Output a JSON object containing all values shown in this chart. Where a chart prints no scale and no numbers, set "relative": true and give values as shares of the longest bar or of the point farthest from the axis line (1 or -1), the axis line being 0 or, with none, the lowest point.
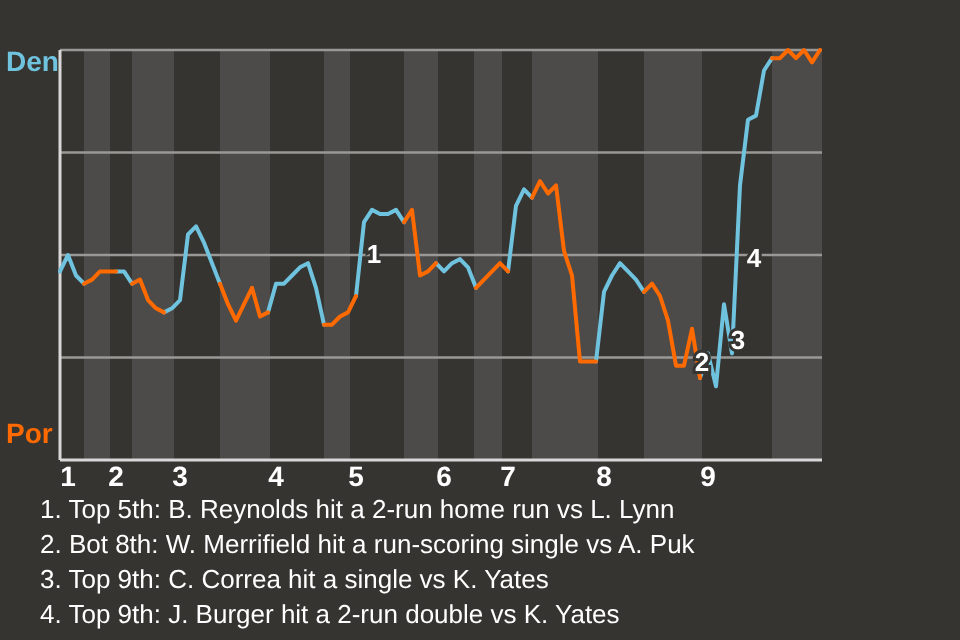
{
  "chart_data": {
    "type": "line",
    "relative": true,
    "grid": "y",
    "marker": "none",
    "line_style": "solid",
    "categories": [
      null,
      "1",
      null,
      null,
      null,
      null,
      null,
      "2",
      null,
      null,
      null,
      null,
      null,
      null,
      null,
      "3",
      null,
      null,
      null,
      null,
      null,
      null,
      null,
      null,
      null,
      null,
      null,
      "4",
      null,
      null,
      null,
      null,
      null,
      null,
      null,
      null,
      null,
      "5",
      null,
      null,
      null,
      null,
      null,
      null,
      null,
      null,
      null,
      null,
      "6",
      null,
      null,
      null,
      null,
      null,
      null,
      null,
      "7",
      null,
      null,
      null,
      null,
      null,
      null,
      null,
      null,
      null,
      null,
      null,
      "8",
      null,
      null,
      null,
      null,
      null,
      null,
      null,
      null,
      null,
      null,
      null,
      null,
      "9",
      null,
      null,
      null,
      null,
      null,
      null,
      null,
      null,
      null,
      null,
      null,
      null,
      null,
      null
    ],
    "series": [
      {
        "color": "#6fc3df",
        "values": [
          0.46,
          0.5,
          0.45,
          0.43,
          null,
          null,
          null,
          0.46,
          0.46,
          0.43,
          null,
          null,
          null,
          0.36,
          0.37,
          0.39,
          0.55,
          0.57,
          0.53,
          0.48,
          0.43,
          null,
          null,
          null,
          null,
          null,
          0.36,
          0.43,
          0.43,
          0.45,
          0.47,
          0.48,
          0.42,
          0.33,
          null,
          null,
          null,
          0.4,
          0.58,
          0.61,
          0.6,
          0.6,
          0.61,
          0.58,
          null,
          null,
          null,
          0.48,
          0.46,
          0.48,
          0.49,
          0.47,
          0.42,
          null,
          null,
          null,
          0.46,
          0.62,
          0.66,
          0.64,
          null,
          null,
          null,
          null,
          null,
          null,
          null,
          0.24,
          0.41,
          0.45,
          0.48,
          0.46,
          0.44,
          0.41,
          null,
          null,
          null,
          null,
          null,
          null,
          0.2,
          0.26,
          0.18,
          0.38,
          0.26,
          0.67,
          0.83,
          0.84,
          0.95,
          0.98,
          null,
          null,
          null,
          null,
          null,
          null
        ]
      },
      {
        "color": "#ff6a00",
        "values": [
          null,
          null,
          null,
          0.43,
          0.44,
          0.46,
          0.46,
          0.46,
          null,
          0.43,
          0.44,
          0.39,
          0.37,
          0.36,
          null,
          null,
          null,
          null,
          null,
          null,
          0.43,
          0.38,
          0.34,
          0.38,
          0.42,
          0.35,
          0.36,
          null,
          null,
          null,
          null,
          null,
          null,
          0.33,
          0.33,
          0.35,
          0.36,
          0.4,
          null,
          null,
          null,
          null,
          null,
          0.58,
          0.61,
          0.45,
          0.46,
          0.48,
          null,
          null,
          null,
          null,
          0.42,
          0.44,
          0.46,
          0.48,
          0.46,
          null,
          null,
          0.64,
          0.68,
          0.65,
          0.67,
          0.51,
          0.45,
          0.24,
          0.24,
          0.24,
          null,
          null,
          null,
          null,
          null,
          0.41,
          0.43,
          0.4,
          0.34,
          0.23,
          0.23,
          0.32,
          0.2,
          null,
          null,
          null,
          null,
          null,
          null,
          null,
          null,
          0.98,
          0.98,
          1,
          0.98,
          1,
          0.97,
          1
        ]
      }
    ],
    "annotations": [
      "Den",
      "Por",
      "1",
      "2",
      "3",
      "4",
      "1. Top 5th: B. Reynolds hit a 2-run home run vs L. Lynn",
      "2. Bot 8th: W. Merrifield hit a run-scoring single vs A. Puk",
      "3. Top 9th: C. Correa hit a single vs K. Yates",
      "4. Top 9th: J. Burger hit a 2-run double vs K. Yates"
    ]
  }
}
